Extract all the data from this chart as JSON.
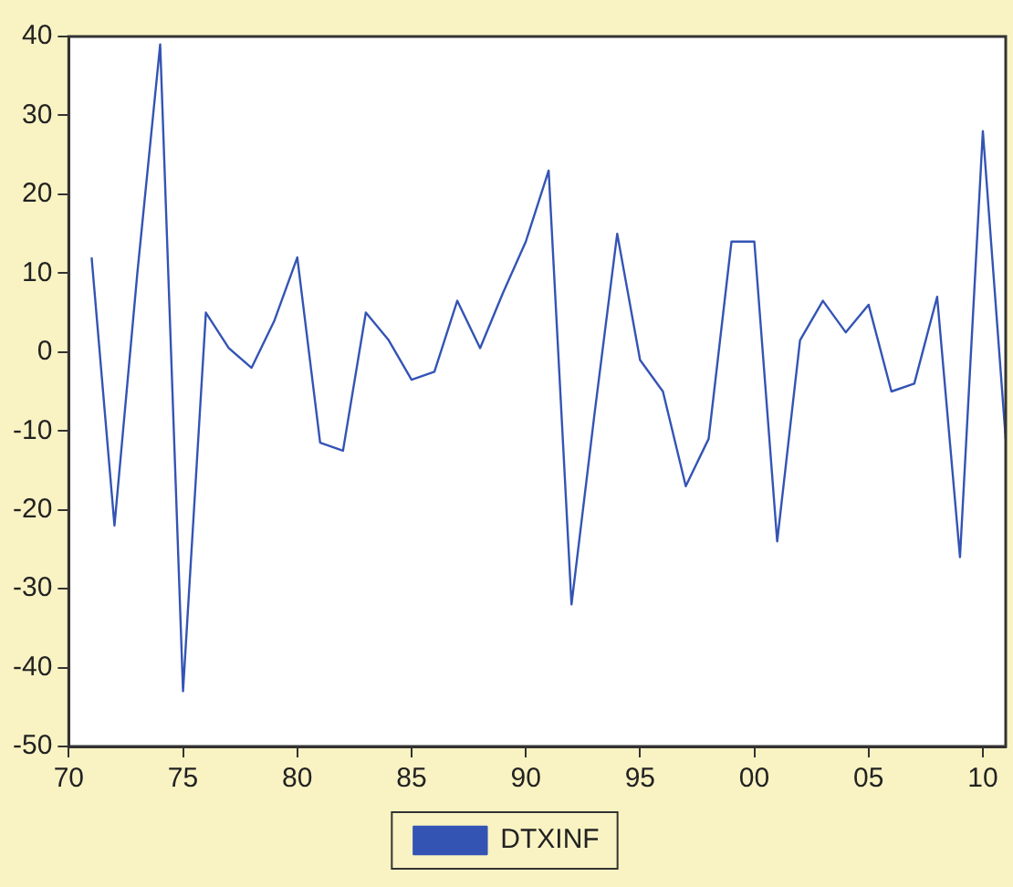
{
  "chart_data": {
    "type": "line",
    "x": [
      1971,
      1972,
      1973,
      1974,
      1975,
      1976,
      1977,
      1978,
      1979,
      1980,
      1981,
      1982,
      1983,
      1984,
      1985,
      1986,
      1987,
      1988,
      1989,
      1990,
      1991,
      1992,
      1993,
      1994,
      1995,
      1996,
      1997,
      1998,
      1999,
      2000,
      2001,
      2002,
      2003,
      2004,
      2005,
      2006,
      2007,
      2008,
      2009,
      2010,
      2011
    ],
    "series": [
      {
        "name": "DTXINF",
        "color": "#3454b4",
        "values": [
          12,
          -22,
          10,
          39,
          -43,
          5,
          0.5,
          -2,
          4,
          12,
          -11.5,
          -12.5,
          5,
          1.5,
          -3.5,
          -2.5,
          6.5,
          0.5,
          7.5,
          14,
          23,
          -32,
          -8,
          15,
          -1,
          -5,
          -17,
          -11,
          14,
          14,
          -24,
          1.5,
          6.5,
          2.5,
          6,
          -5,
          -4,
          7,
          -26,
          28,
          -11
        ]
      }
    ],
    "xlim": [
      1970,
      2011
    ],
    "xticks": [
      {
        "value": 1970,
        "label": "70"
      },
      {
        "value": 1975,
        "label": "75"
      },
      {
        "value": 1980,
        "label": "80"
      },
      {
        "value": 1985,
        "label": "85"
      },
      {
        "value": 1990,
        "label": "90"
      },
      {
        "value": 1995,
        "label": "95"
      },
      {
        "value": 2000,
        "label": "00"
      },
      {
        "value": 2005,
        "label": "05"
      },
      {
        "value": 2010,
        "label": "10"
      }
    ],
    "ylim": [
      -50,
      40
    ],
    "yticks": [
      -50,
      -40,
      -30,
      -20,
      -10,
      0,
      10,
      20,
      30,
      40
    ],
    "grid": false,
    "legend": "bottom",
    "marker": "none",
    "line_style": "solid"
  }
}
